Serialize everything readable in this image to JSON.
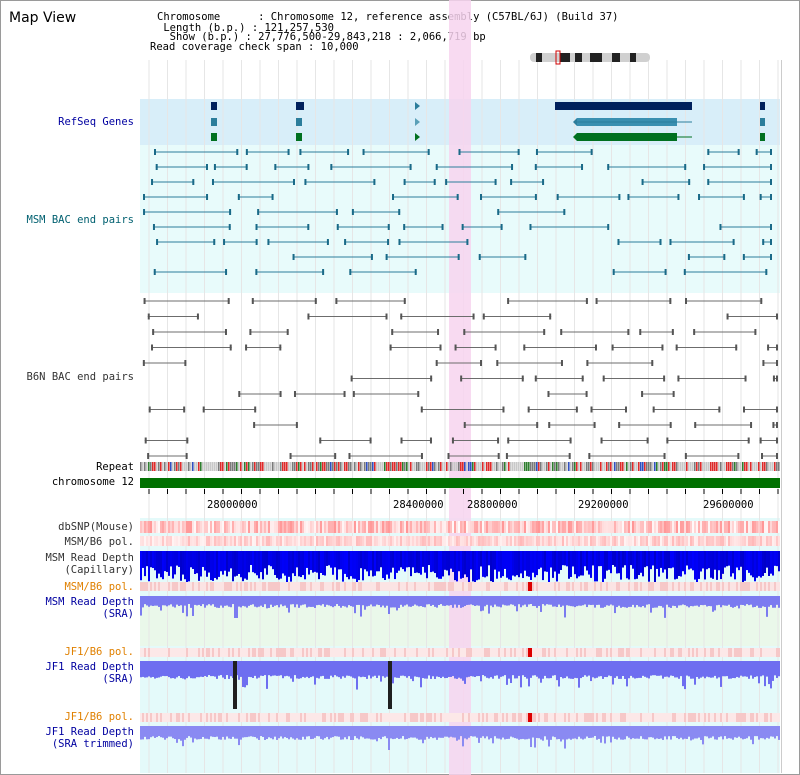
{
  "title": "Map View",
  "info": {
    "chromosome": "Chromosome      : Chromosome 12, reference assembly (C57BL/6J) (Build 37)",
    "length": " Length (b.p.) : 121,257,530",
    "show": "  Show (b.p.) : 27,776,500-29,843,218 : 2,066,719 bp",
    "coverage": "Read coverage check span : 10,000"
  },
  "tracks": {
    "refseq": "RefSeq Genes",
    "msm_bac": "MSM BAC end pairs",
    "b6n_bac": "B6N BAC end pairs",
    "repeat": "Repeat",
    "chromosome": "chromosome 12",
    "dbsnp": "dbSNP(Mouse)",
    "msm_b6_pol_1": "MSM/B6 pol.",
    "msm_read_cap_1": "MSM Read Depth",
    "msm_read_cap_2": "(Capillary)",
    "msm_b6_pol_2": "MSM/B6 pol.",
    "msm_read_sra_1": "MSM Read Depth",
    "msm_read_sra_2": "(SRA)",
    "jf1_b6_pol_1": "JF1/B6 pol.",
    "jf1_read_sra_1": "JF1 Read Depth",
    "jf1_read_sra_2": "(SRA)",
    "jf1_b6_pol_2": "JF1/B6 pol.",
    "jf1_read_trim_1": "JF1 Read Depth",
    "jf1_read_trim_2": "(SRA trimmed)"
  },
  "axis_ticks": [
    "28000000",
    "28400000",
    "28800000",
    "29200000",
    "29600000"
  ],
  "colors": {
    "refseq_bg": "#d8eef9",
    "msm_bg": "#e8fbfb",
    "navy": "#00205c",
    "teal": "#2b7d9b",
    "green": "#007020",
    "highlight": "#f7d4ee",
    "orange_label": "#e08000",
    "blue_label": "#0000a0",
    "teal_label": "#006070"
  }
}
